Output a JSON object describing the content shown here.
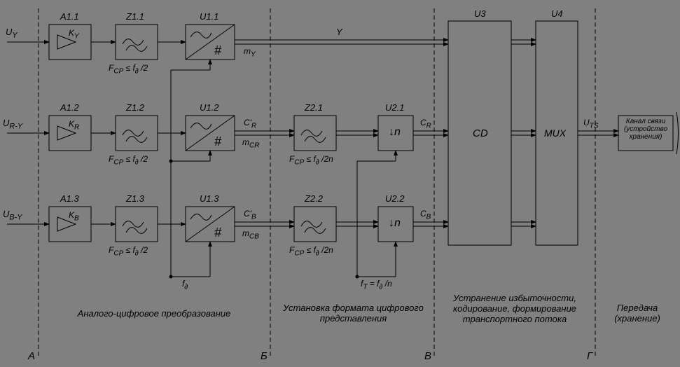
{
  "type": "flowchart",
  "background_color": "#808080",
  "stroke_color": "#000000",
  "text_color": "#000000",
  "font_family": "Arial, sans-serif",
  "font_style": "italic",
  "base_fontsize": 13,
  "inputs": {
    "uy": "U<sub>Y</sub>",
    "ury": "U<sub>R-Y</sub>",
    "uby": "U<sub>B-Y</sub>"
  },
  "rows": [
    {
      "amp_id": "A1.1",
      "amp_gain": "K<sub>Y</sub>",
      "z1_id": "Z1.1",
      "z1_note": "F<sub>CP</sub> ≤ f<sub>∂</sub> /2",
      "u1_id": "U1.1"
    },
    {
      "amp_id": "A1.2",
      "amp_gain": "K<sub>R</sub>",
      "z1_id": "Z1.2",
      "z1_note": "F<sub>CP</sub> ≤ f<sub>∂</sub> /2",
      "u1_id": "U1.2",
      "z2_id": "Z2.1",
      "z2_note": "F<sub>CP</sub> ≤ f<sub>∂</sub> /2n",
      "u2_id": "U2.1"
    },
    {
      "amp_id": "A1.3",
      "amp_gain": "K<sub>B</sub>",
      "z1_id": "Z1.3",
      "z1_note": "F<sub>CP</sub> ≤ f<sub>∂</sub> /2",
      "u1_id": "U1.3",
      "z2_id": "Z2.2",
      "z2_note": "F<sub>CP</sub> ≤ f<sub>∂</sub> /2n",
      "u2_id": "U2.2"
    }
  ],
  "downsample_label": "↓n",
  "signals": {
    "y": "Y",
    "my": "m<sub>Y</sub>",
    "cr_prime": "C'<sub>R</sub>",
    "mcr": "m<sub>CR</sub>",
    "cb_prime": "C'<sub>B</sub>",
    "mcb": "m<sub>CB</sub>",
    "cr": "C<sub>R</sub>",
    "cb": "C<sub>B</sub>",
    "uts": "U<sub>TS</sub>"
  },
  "clocks": {
    "fd": "f<sub>∂</sub>",
    "ft": "f<sub>T</sub> = f<sub>∂</sub> /n"
  },
  "u3": {
    "id": "U3",
    "label": "CD"
  },
  "u4": {
    "id": "U4",
    "label": "MUX"
  },
  "output_block": "Канал связи (устройство хранения)",
  "sections": {
    "A": {
      "letter": "А",
      "caption": "Аналого-цифровое преобразование"
    },
    "B": {
      "letter": "Б",
      "caption": "Установка формата цифрового представления"
    },
    "V": {
      "letter": "В",
      "caption": "Устранение избыточности, кодирование, формирование транспортного потока"
    },
    "G": {
      "letter": "Г",
      "caption": "Передача (хранение)"
    }
  }
}
